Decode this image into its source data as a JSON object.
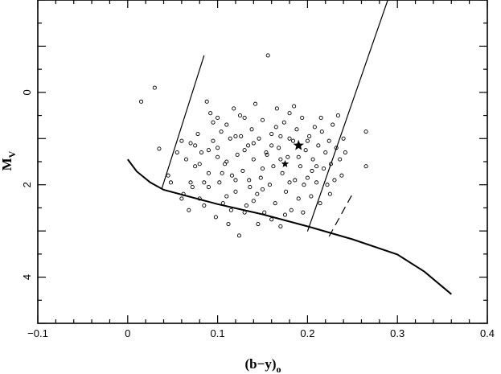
{
  "chart_data": {
    "type": "scatter",
    "title": "",
    "xlabel": {
      "main": "(b−y)",
      "sub": "o"
    },
    "ylabel": {
      "main": "M",
      "sub": "V"
    },
    "xlim": [
      -0.1,
      0.4
    ],
    "ylim": [
      5.0,
      -2.0
    ],
    "y_inverted": true,
    "grid": false,
    "x_ticks": [
      -0.1,
      0.0,
      0.1,
      0.2,
      0.3,
      0.4
    ],
    "x_tick_labels": [
      "−0.1",
      "0",
      "0.1",
      "0.2",
      "0.3",
      "0.4"
    ],
    "y_ticks": [
      0,
      2,
      4
    ],
    "y_tick_labels": [
      "0",
      "2",
      "4"
    ],
    "zams_curve": [
      [
        0.0,
        1.45
      ],
      [
        0.01,
        1.71
      ],
      [
        0.025,
        1.95
      ],
      [
        0.04,
        2.11
      ],
      [
        0.1,
        2.42
      ],
      [
        0.15,
        2.64
      ],
      [
        0.2,
        2.9
      ],
      [
        0.25,
        3.18
      ],
      [
        0.3,
        3.51
      ],
      [
        0.33,
        3.88
      ],
      [
        0.36,
        4.37
      ]
    ],
    "boundary_left": [
      [
        0.038,
        2.08
      ],
      [
        0.085,
        -0.8
      ]
    ],
    "boundary_right": [
      [
        0.2,
        3.01
      ],
      [
        0.295,
        -2.32
      ]
    ],
    "dashed_line": [
      [
        0.224,
        3.12
      ],
      [
        0.25,
        2.2
      ]
    ],
    "special_stars": [
      [
        0.19,
        1.15
      ],
      [
        0.175,
        1.55
      ]
    ],
    "points": [
      [
        0.015,
        0.2
      ],
      [
        0.03,
        -0.1
      ],
      [
        0.035,
        1.22
      ],
      [
        0.045,
        1.8
      ],
      [
        0.048,
        1.95
      ],
      [
        0.055,
        1.3
      ],
      [
        0.06,
        1.05
      ],
      [
        0.062,
        2.2
      ],
      [
        0.065,
        1.45
      ],
      [
        0.068,
        2.55
      ],
      [
        0.07,
        1.1
      ],
      [
        0.072,
        2.05
      ],
      [
        0.075,
        1.6
      ],
      [
        0.078,
        0.9
      ],
      [
        0.08,
        2.3
      ],
      [
        0.082,
        1.3
      ],
      [
        0.085,
        1.95
      ],
      [
        0.088,
        0.2
      ],
      [
        0.09,
        1.75
      ],
      [
        0.092,
        0.45
      ],
      [
        0.095,
        1.05
      ],
      [
        0.098,
        2.7
      ],
      [
        0.1,
        1.2
      ],
      [
        0.102,
        1.95
      ],
      [
        0.104,
        0.85
      ],
      [
        0.106,
        2.4
      ],
      [
        0.108,
        1.55
      ],
      [
        0.11,
        0.7
      ],
      [
        0.112,
        2.85
      ],
      [
        0.114,
        1.0
      ],
      [
        0.116,
        1.8
      ],
      [
        0.118,
        0.35
      ],
      [
        0.12,
        2.15
      ],
      [
        0.122,
        1.35
      ],
      [
        0.124,
        3.1
      ],
      [
        0.126,
        0.95
      ],
      [
        0.128,
        1.7
      ],
      [
        0.13,
        0.55
      ],
      [
        0.132,
        2.45
      ],
      [
        0.134,
        1.15
      ],
      [
        0.136,
        2.05
      ],
      [
        0.138,
        0.8
      ],
      [
        0.14,
        1.45
      ],
      [
        0.142,
        0.25
      ],
      [
        0.144,
        2.2
      ],
      [
        0.146,
        1.0
      ],
      [
        0.148,
        1.85
      ],
      [
        0.15,
        0.6
      ],
      [
        0.152,
        2.6
      ],
      [
        0.154,
        1.3
      ],
      [
        0.156,
        -0.8
      ],
      [
        0.158,
        2.0
      ],
      [
        0.16,
        0.9
      ],
      [
        0.162,
        1.6
      ],
      [
        0.164,
        2.4
      ],
      [
        0.166,
        0.35
      ],
      [
        0.168,
        1.2
      ],
      [
        0.17,
        2.9
      ],
      [
        0.172,
        1.75
      ],
      [
        0.174,
        0.65
      ],
      [
        0.176,
        2.15
      ],
      [
        0.178,
        1.4
      ],
      [
        0.18,
        0.45
      ],
      [
        0.182,
        2.55
      ],
      [
        0.184,
        1.05
      ],
      [
        0.186,
        1.9
      ],
      [
        0.188,
        0.8
      ],
      [
        0.19,
        2.3
      ],
      [
        0.192,
        1.6
      ],
      [
        0.194,
        0.55
      ],
      [
        0.196,
        2.0
      ],
      [
        0.198,
        1.25
      ],
      [
        0.2,
        1.85
      ],
      [
        0.202,
        0.95
      ],
      [
        0.204,
        2.25
      ],
      [
        0.206,
        1.45
      ],
      [
        0.208,
        0.75
      ],
      [
        0.21,
        1.95
      ],
      [
        0.212,
        1.15
      ],
      [
        0.214,
        2.4
      ],
      [
        0.216,
        0.85
      ],
      [
        0.218,
        1.65
      ],
      [
        0.22,
        1.3
      ],
      [
        0.222,
        2.0
      ],
      [
        0.224,
        1.05
      ],
      [
        0.226,
        1.55
      ],
      [
        0.228,
        0.7
      ],
      [
        0.23,
        1.9
      ],
      [
        0.232,
        1.2
      ],
      [
        0.234,
        0.5
      ],
      [
        0.236,
        1.45
      ],
      [
        0.238,
        1.8
      ],
      [
        0.24,
        1.0
      ],
      [
        0.242,
        1.3
      ],
      [
        0.265,
        0.85
      ],
      [
        0.265,
        1.6
      ],
      [
        0.11,
        1.5
      ],
      [
        0.12,
        1.9
      ],
      [
        0.13,
        2.6
      ],
      [
        0.14,
        1.1
      ],
      [
        0.15,
        1.65
      ],
      [
        0.16,
        2.75
      ],
      [
        0.17,
        0.95
      ],
      [
        0.18,
        1.95
      ],
      [
        0.19,
        1.4
      ],
      [
        0.2,
        1.05
      ],
      [
        0.21,
        1.6
      ],
      [
        0.1,
        1.4
      ],
      [
        0.09,
        2.05
      ],
      [
        0.075,
        1.15
      ],
      [
        0.085,
        2.45
      ],
      [
        0.095,
        0.65
      ],
      [
        0.105,
        1.75
      ],
      [
        0.115,
        2.55
      ],
      [
        0.125,
        0.5
      ],
      [
        0.135,
        1.9
      ],
      [
        0.145,
        2.85
      ],
      [
        0.155,
        1.35
      ],
      [
        0.165,
        0.75
      ],
      [
        0.175,
        2.65
      ],
      [
        0.185,
        0.3
      ],
      [
        0.195,
        2.6
      ],
      [
        0.205,
        1.7
      ],
      [
        0.215,
        0.55
      ],
      [
        0.225,
        2.2
      ],
      [
        0.13,
        1.25
      ],
      [
        0.15,
        2.1
      ],
      [
        0.17,
        1.45
      ],
      [
        0.18,
        1.0
      ],
      [
        0.16,
        1.15
      ],
      [
        0.14,
        2.35
      ],
      [
        0.12,
        0.95
      ],
      [
        0.11,
        2.25
      ],
      [
        0.1,
        0.55
      ],
      [
        0.09,
        1.25
      ],
      [
        0.08,
        1.55
      ],
      [
        0.07,
        1.95
      ],
      [
        0.06,
        2.3
      ]
    ]
  }
}
